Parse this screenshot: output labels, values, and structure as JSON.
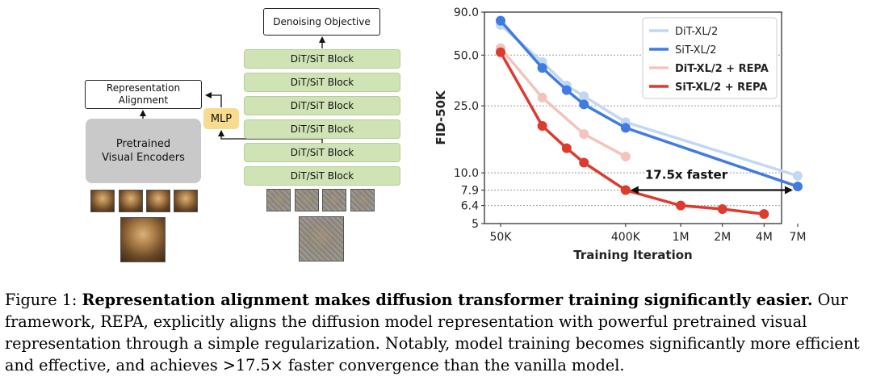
{
  "diagram": {
    "objective_label": "Denoising Objective",
    "representation_label": "Representation Alignment",
    "encoder_label": "Pretrained Visual Encoders",
    "mlp_label": "MLP",
    "block_labels": [
      "DiT/SiT Block",
      "DiT/SiT Block",
      "DiT/SiT Block",
      "DiT/SiT Block",
      "DiT/SiT Block",
      "DiT/SiT Block"
    ]
  },
  "chart_data": {
    "type": "line",
    "xlabel": "Training Iteration",
    "ylabel": "FID-50K",
    "x_scale": "log",
    "y_scale": "log",
    "xlim": [
      50000,
      7000000
    ],
    "ylim": [
      5,
      90
    ],
    "x_tick_labels": [
      "50K",
      "400K",
      "1M",
      "2M",
      "4M",
      "7M"
    ],
    "x_tick_values": [
      50000,
      400000,
      1000000,
      2000000,
      4000000,
      7000000
    ],
    "y_tick_labels": [
      "90.0",
      "50.0",
      "25.0",
      "10.0",
      "7.9",
      "6.4",
      "5"
    ],
    "y_tick_values": [
      90,
      50,
      25,
      10,
      7.9,
      6.4,
      5
    ],
    "grid": "horizontal dotted",
    "legend_position": "top-right",
    "series": [
      {
        "name": "DiT-XL/2",
        "color": "#c2d7f3",
        "x": [
          50000,
          100000,
          150000,
          200000,
          400000,
          7000000
        ],
        "y": [
          75.5,
          45.5,
          33.0,
          28.5,
          20.0,
          9.6
        ]
      },
      {
        "name": "SiT-XL/2",
        "color": "#3f7be0",
        "x": [
          50000,
          100000,
          150000,
          200000,
          400000,
          7000000
        ],
        "y": [
          80.0,
          42.0,
          31.0,
          25.5,
          18.5,
          8.3
        ]
      },
      {
        "name": "DiT-XL/2 + REPA",
        "color": "#f4c3be",
        "x": [
          50000,
          100000,
          200000,
          400000
        ],
        "y": [
          55.0,
          28.0,
          17.0,
          12.5
        ]
      },
      {
        "name": "SiT-XL/2 + REPA",
        "color": "#dc3b2e",
        "x": [
          50000,
          100000,
          150000,
          200000,
          400000,
          1000000,
          2000000,
          4000000
        ],
        "y": [
          52.0,
          19.0,
          14.0,
          11.5,
          7.9,
          6.4,
          6.1,
          5.7
        ]
      }
    ],
    "annotation": {
      "text": "17.5x faster",
      "from_x": 400000,
      "to_x": 7000000,
      "y": 7.9
    }
  },
  "caption": {
    "prefix": "Figure 1: ",
    "title": "Representation alignment makes diffusion transformer training significantly easier.",
    "body": "Our framework, REPA, explicitly aligns the diffusion model representation with powerful pretrained visual representation through a simple regularization. Notably, model training becomes significantly more efficient and effective, and achieves >17.5× faster convergence than the vanilla model."
  }
}
